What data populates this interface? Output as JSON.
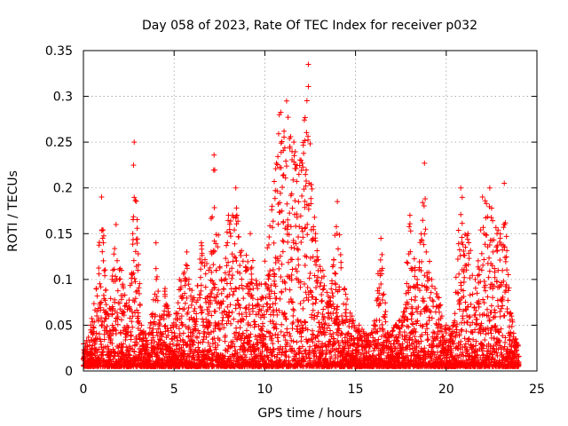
{
  "chart_data": {
    "type": "scatter",
    "title": "Day 058 of 2023, Rate Of TEC Index for receiver p032",
    "xlabel": "GPS time / hours",
    "ylabel": "ROTI / TECUs",
    "xlim": [
      0,
      25
    ],
    "ylim": [
      0,
      0.35
    ],
    "xticks": [
      "0",
      "5",
      "10",
      "15",
      "20",
      "25"
    ],
    "yticks": [
      "0",
      "0.05",
      "0.1",
      "0.15",
      "0.2",
      "0.25",
      "0.3",
      "0.35"
    ],
    "grid": true,
    "marker": "plus",
    "marker_color": "#ff0000",
    "series": [
      {
        "x": [
          0.1,
          0.4,
          0.7,
          1.0,
          1.4,
          1.8,
          2.1,
          2.5,
          2.8,
          3.2,
          3.6,
          4.0,
          4.2,
          4.5,
          4.9,
          5.3,
          5.7,
          6.1,
          6.5,
          6.9,
          7.2,
          7.6,
          8.0,
          8.4,
          8.8,
          9.2,
          9.6,
          10.0,
          10.4,
          10.8,
          11.2,
          11.6,
          12.0,
          12.4,
          12.8,
          13.2,
          13.6,
          14.0,
          14.4,
          14.8,
          15.2,
          15.6,
          16.0,
          16.4,
          16.8,
          17.2,
          17.6,
          18.0,
          18.4,
          18.8,
          19.2,
          19.6,
          20.0,
          20.4,
          20.8,
          21.2,
          21.6,
          22.0,
          22.4,
          22.8,
          23.2,
          23.6,
          23.9
        ],
        "y": [
          0.03,
          0.05,
          0.09,
          0.19,
          0.06,
          0.16,
          0.11,
          0.07,
          0.25,
          0.05,
          0.04,
          0.14,
          0.06,
          0.09,
          0.05,
          0.1,
          0.13,
          0.08,
          0.14,
          0.11,
          0.236,
          0.1,
          0.17,
          0.2,
          0.12,
          0.15,
          0.09,
          0.12,
          0.18,
          0.28,
          0.295,
          0.25,
          0.23,
          0.335,
          0.15,
          0.11,
          0.08,
          0.185,
          0.09,
          0.06,
          0.05,
          0.04,
          0.05,
          0.145,
          0.04,
          0.05,
          0.06,
          0.17,
          0.1,
          0.227,
          0.1,
          0.08,
          0.05,
          0.05,
          0.2,
          0.15,
          0.1,
          0.19,
          0.2,
          0.15,
          0.205,
          0.06,
          0.03
        ]
      }
    ]
  }
}
